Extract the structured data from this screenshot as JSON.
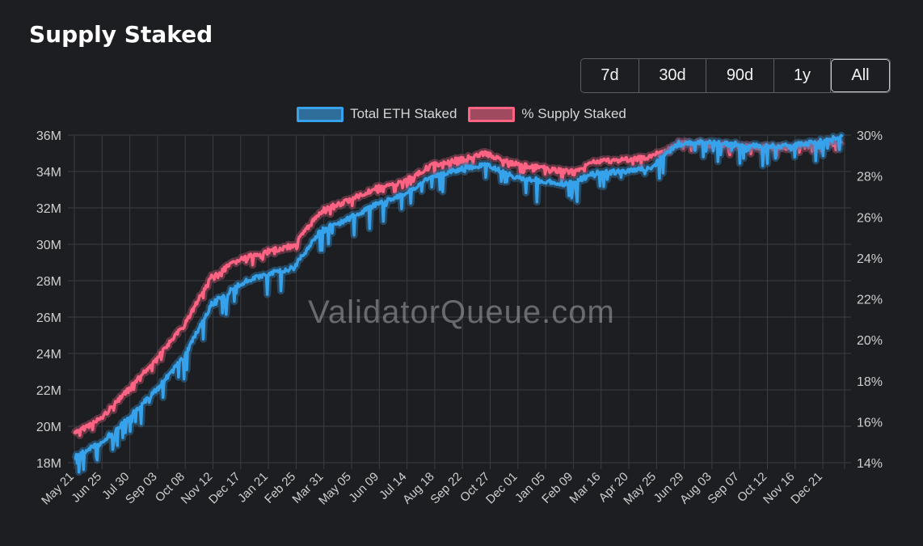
{
  "title": "Supply Staked",
  "range_buttons": [
    "7d",
    "30d",
    "90d",
    "1y",
    "All"
  ],
  "active_range": "All",
  "watermark": "ValidatorQueue.com",
  "colors": {
    "background": "#1c1e22",
    "grid": "#3a3d42",
    "eth_staked": "#36a2eb",
    "eth_staked_fill": "#2f6d9a",
    "pct_staked": "#ff6384",
    "pct_staked_fill": "#a04a5f"
  },
  "chart_data": {
    "type": "line",
    "title": "",
    "x_tick_labels": [
      "May 21",
      "Jun 25",
      "Jul 30",
      "Sep 03",
      "Oct 08",
      "Nov 12",
      "Dec 17",
      "Jan 21",
      "Feb 25",
      "Mar 31",
      "May 05",
      "Jun 09",
      "Jul 14",
      "Aug 18",
      "Sep 22",
      "Oct 27",
      "Dec 01",
      "Jan 05",
      "Feb 09",
      "Mar 16",
      "Apr 20",
      "May 25",
      "Jun 29",
      "Aug 03",
      "Sep 07",
      "Oct 12",
      "Nov 16",
      "Dec 21"
    ],
    "y_left": {
      "label": "",
      "ticks": [
        "18M",
        "20M",
        "22M",
        "24M",
        "26M",
        "28M",
        "30M",
        "32M",
        "34M",
        "36M"
      ],
      "range": [
        18,
        36
      ],
      "unit": "M"
    },
    "y_right": {
      "label": "",
      "ticks": [
        "14%",
        "16%",
        "18%",
        "20%",
        "22%",
        "24%",
        "26%",
        "28%",
        "30%"
      ],
      "range": [
        14,
        30
      ],
      "unit": "%"
    },
    "legend_position": "top-center",
    "grid": true,
    "series": [
      {
        "name": "Total ETH Staked",
        "axis": "left",
        "values": [
          18.3,
          19.1,
          20.5,
          22.0,
          23.8,
          26.7,
          27.8,
          28.4,
          28.7,
          30.8,
          31.4,
          32.2,
          32.7,
          33.7,
          34.1,
          34.4,
          33.7,
          33.5,
          33.3,
          33.9,
          34.0,
          34.2,
          35.5,
          35.6,
          35.5,
          35.4,
          35.4,
          35.6,
          35.9
        ]
      },
      {
        "name": "% Supply Staked",
        "axis": "right",
        "values": [
          15.4,
          16.2,
          17.6,
          19.1,
          20.7,
          23.1,
          23.9,
          24.3,
          24.6,
          26.3,
          26.8,
          27.4,
          27.7,
          28.5,
          28.8,
          29.1,
          28.6,
          28.4,
          28.2,
          28.7,
          28.8,
          28.9,
          29.6,
          29.6,
          29.5,
          29.4,
          29.4,
          29.5,
          29.7
        ]
      }
    ]
  }
}
